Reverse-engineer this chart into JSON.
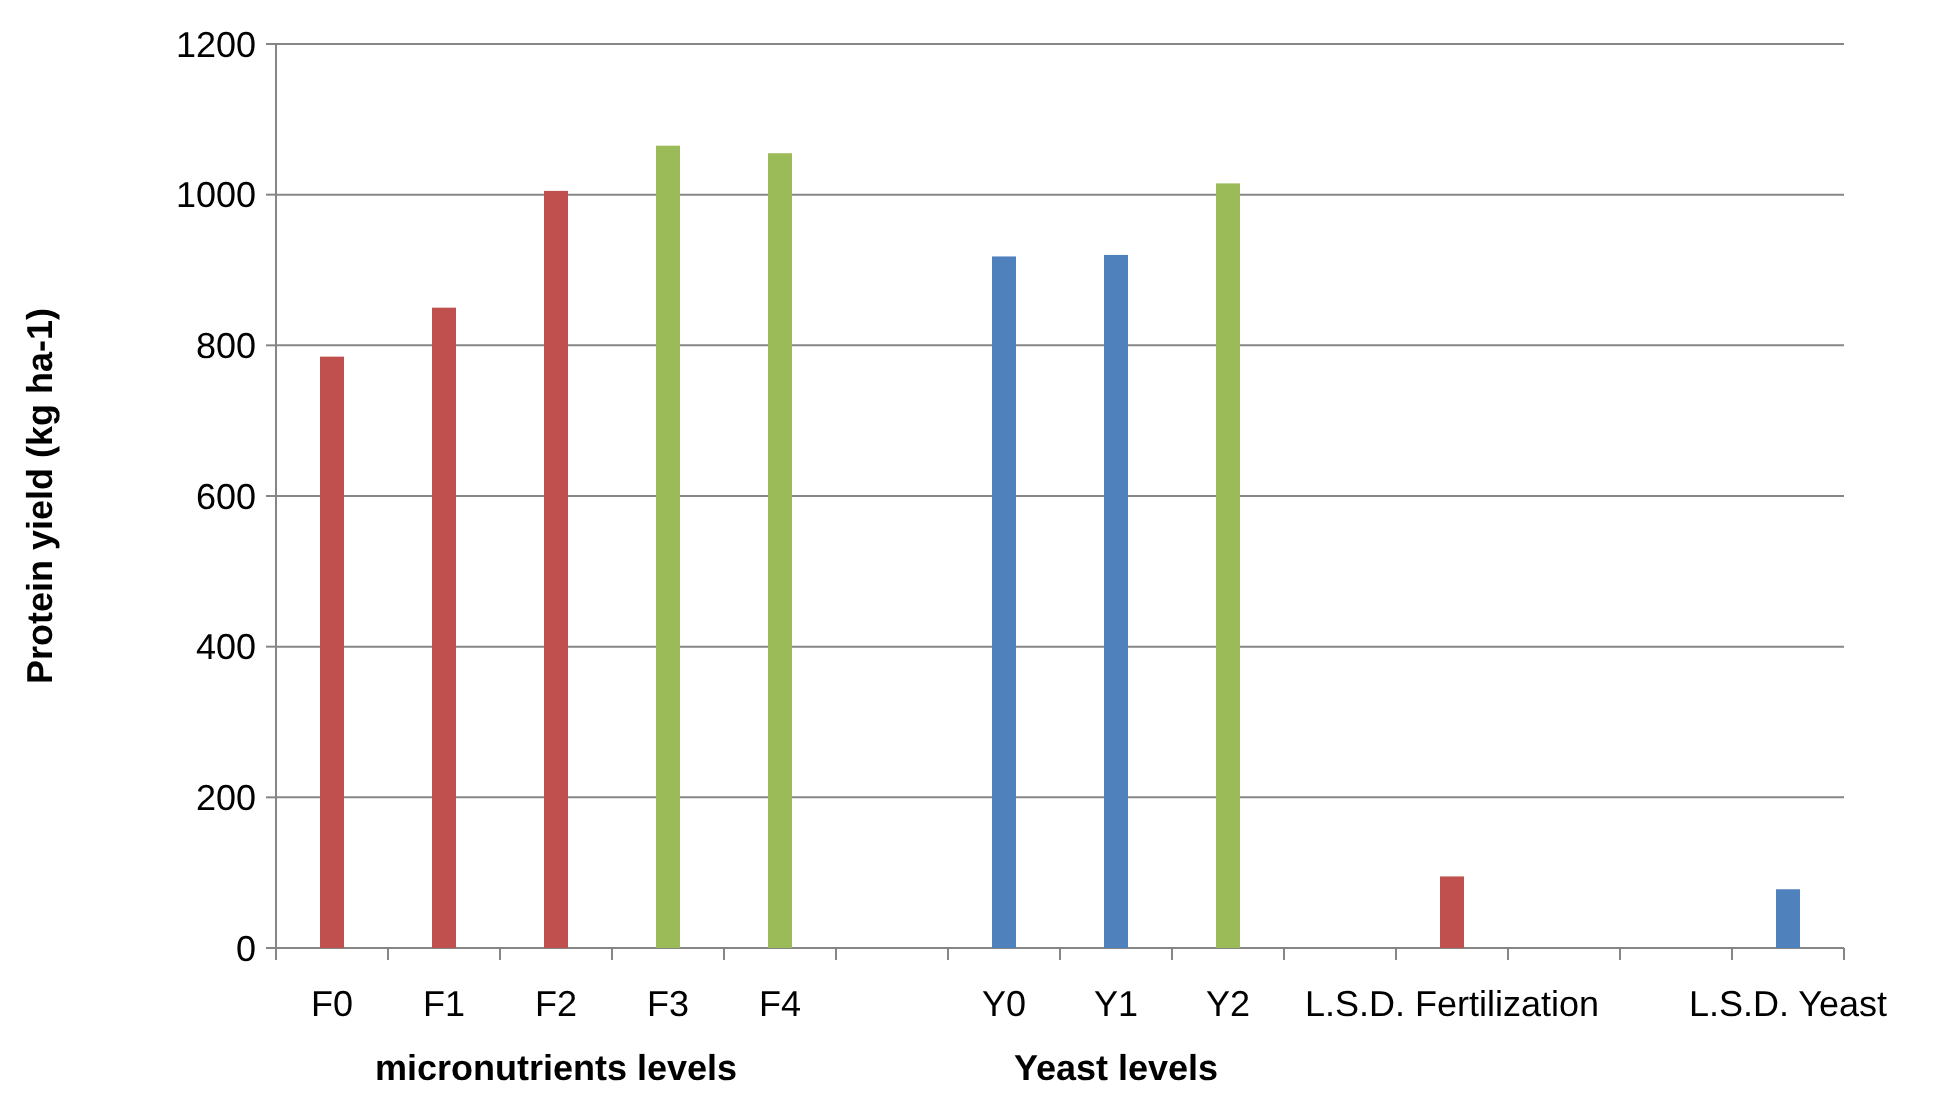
{
  "chart_data": {
    "type": "bar",
    "ylabel": "Protein yield (kg ha-1)",
    "categories": [
      "F0",
      "F1",
      "F2",
      "F3",
      "F4",
      null,
      "Y0",
      "Y1",
      "Y2",
      null,
      "L.S.D. Fertilization",
      null,
      null,
      "L.S.D. Yeast"
    ],
    "values": [
      785,
      850,
      1005,
      1065,
      1055,
      null,
      918,
      920,
      1015,
      null,
      95,
      null,
      null,
      78
    ],
    "colors": [
      "#c0504d",
      "#c0504d",
      "#c0504d",
      "#9bbb59",
      "#9bbb59",
      null,
      "#4f81bd",
      "#4f81bd",
      "#9bbb59",
      null,
      "#c0504d",
      null,
      null,
      "#4f81bd"
    ],
    "ylim": [
      0,
      1200
    ],
    "yticks": [
      0,
      200,
      400,
      600,
      800,
      1000,
      1200
    ],
    "grid": "y",
    "annotations": [
      "micronutrients levels",
      "Yeast levels"
    ]
  }
}
